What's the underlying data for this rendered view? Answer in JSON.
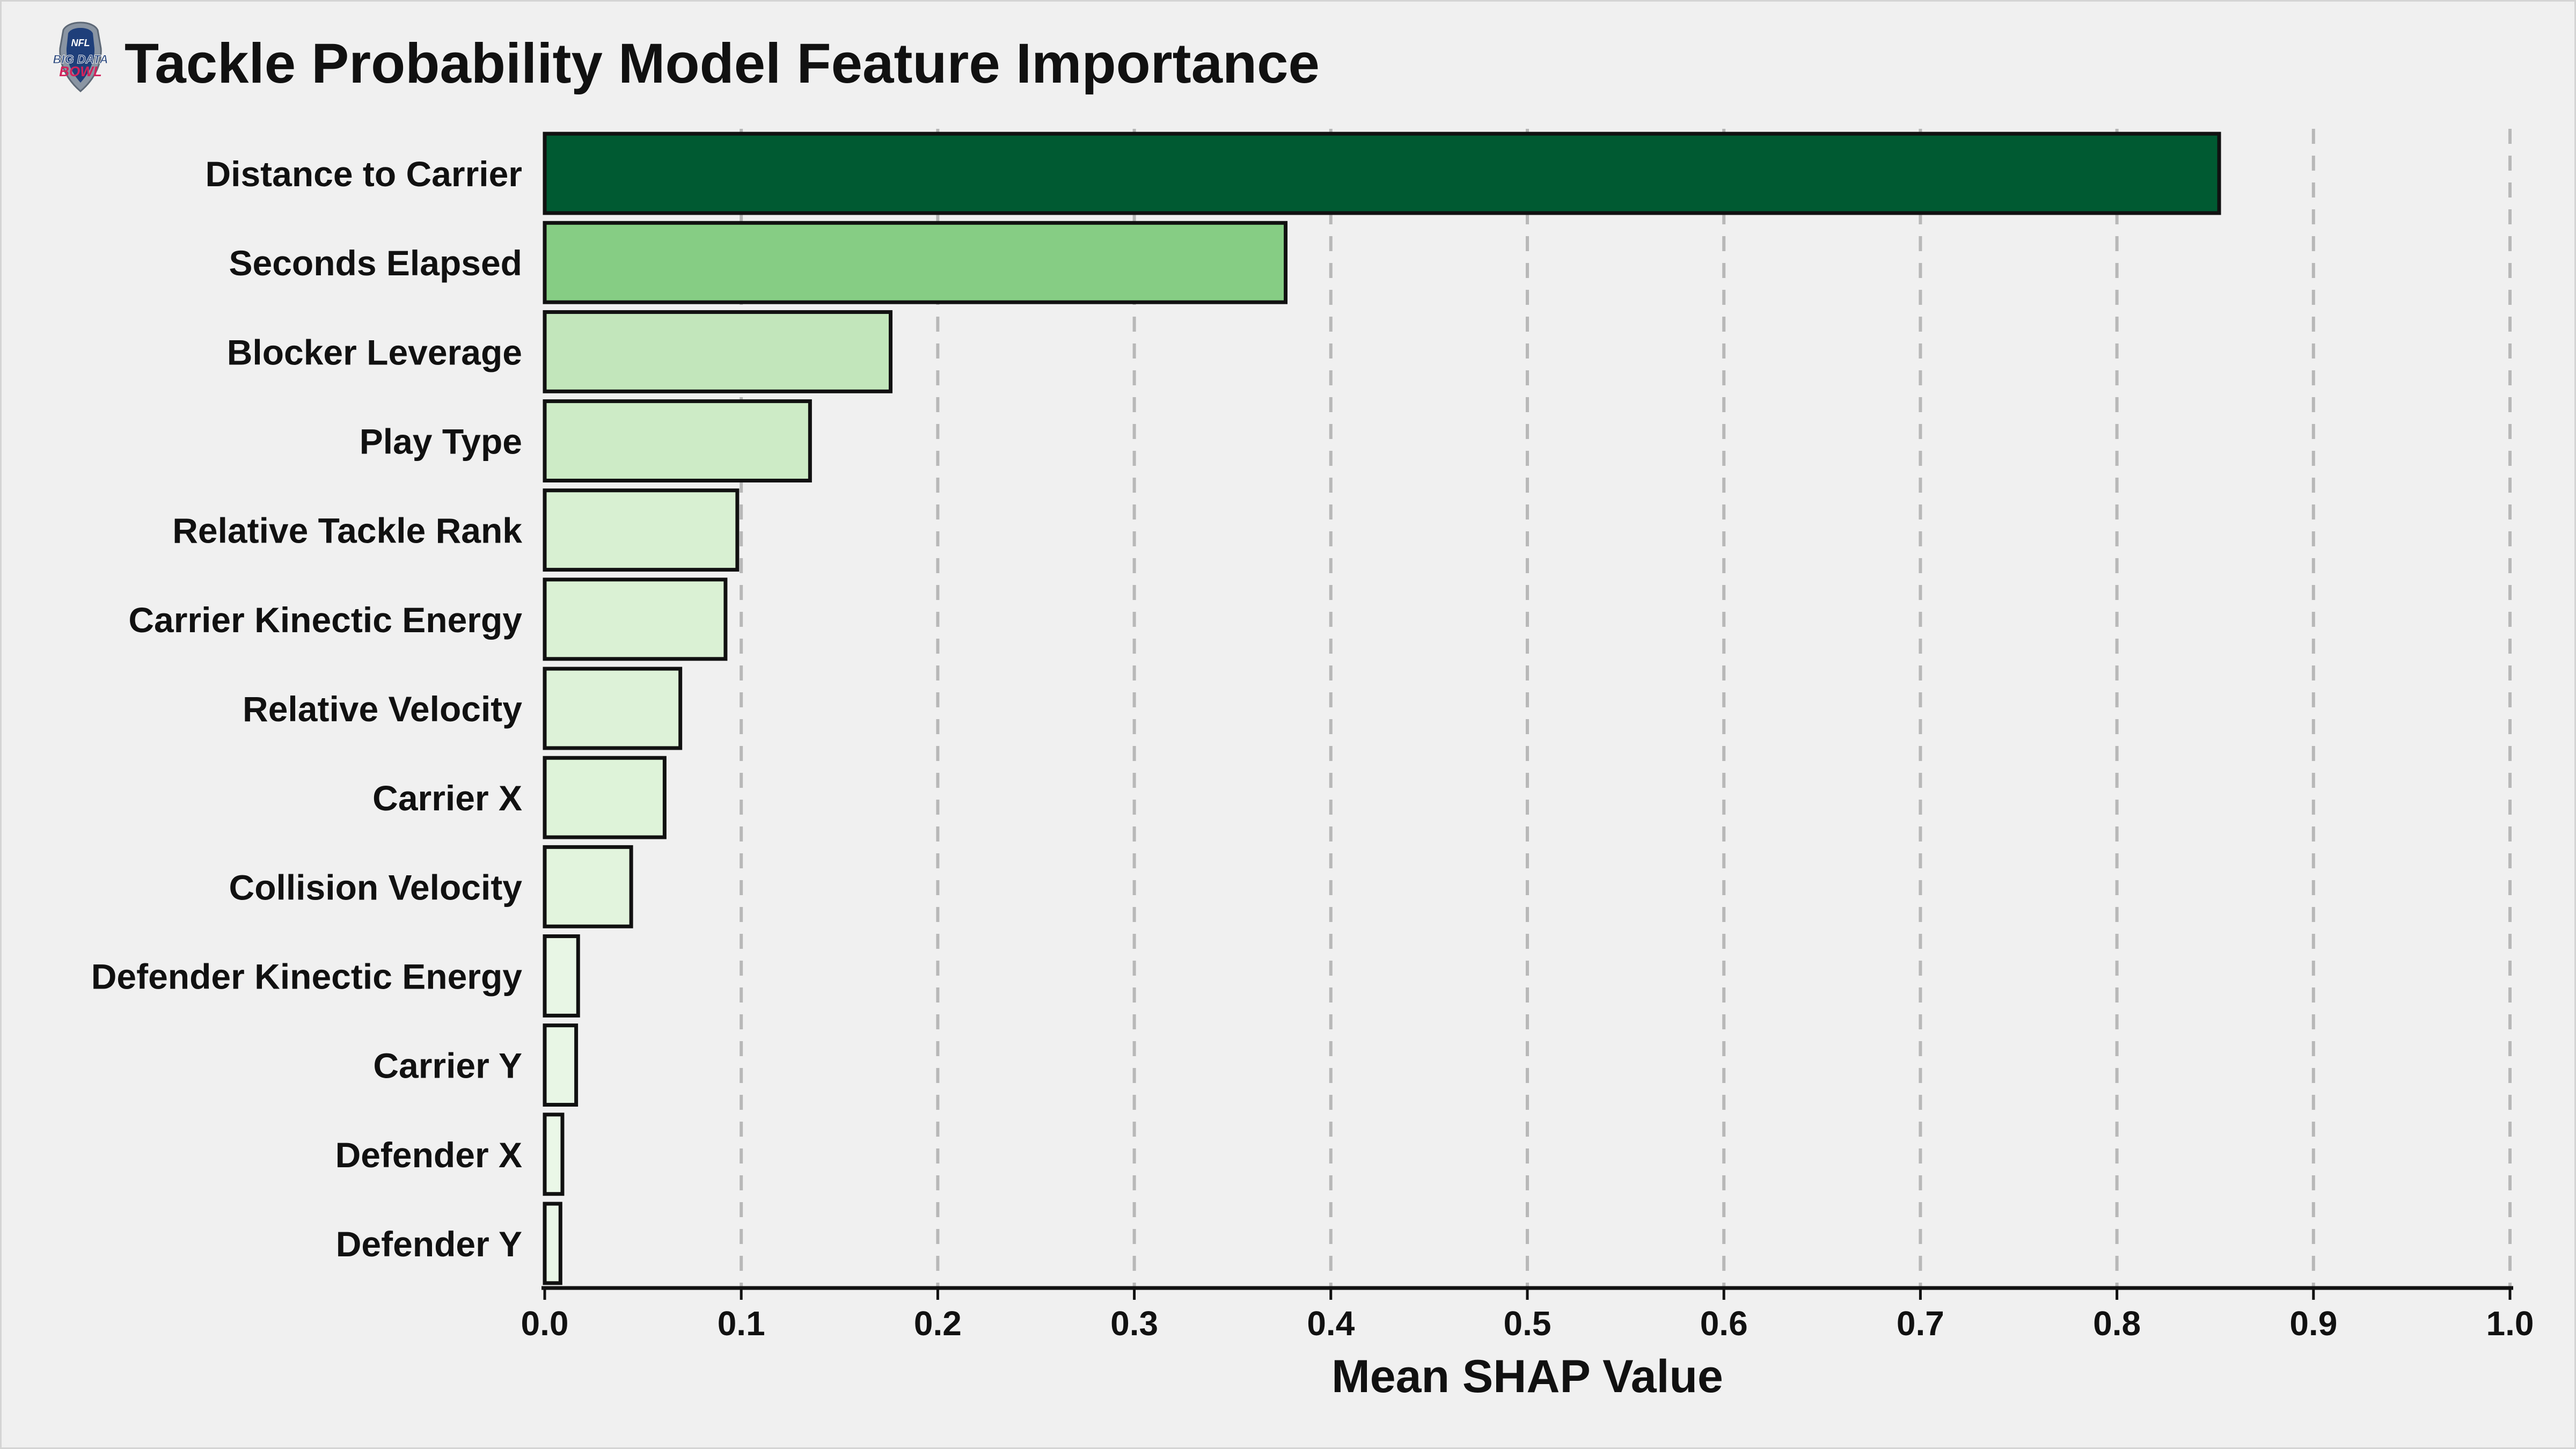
{
  "title": "Tackle Probability Model Feature Importance",
  "logo_text": [
    "BIG DATA",
    "BOWL"
  ],
  "chart_data": {
    "type": "bar",
    "orientation": "horizontal",
    "title": "Tackle Probability Model Feature Importance",
    "xlabel": "Mean SHAP Value",
    "ylabel": "",
    "xlim": [
      0.0,
      1.0
    ],
    "xticks": [
      "0.0",
      "0.1",
      "0.2",
      "0.3",
      "0.4",
      "0.5",
      "0.6",
      "0.7",
      "0.8",
      "0.9",
      "1.0"
    ],
    "grid": "vertical dashed",
    "categories": [
      "Distance to Carrier",
      "Seconds Elapsed",
      "Blocker Leverage",
      "Play Type",
      "Relative Tackle Rank",
      "Carrier Kinectic Energy",
      "Relative Velocity",
      "Carrier X",
      "Collision Velocity",
      "Defender Kinectic Energy",
      "Carrier Y",
      "Defender X",
      "Defender Y"
    ],
    "values": [
      0.852,
      0.377,
      0.176,
      0.135,
      0.098,
      0.092,
      0.069,
      0.061,
      0.044,
      0.017,
      0.016,
      0.009,
      0.008
    ],
    "colors": [
      "#005a32",
      "#86cd84",
      "#c2e6bb",
      "#cdebc6",
      "#d8f0d2",
      "#daf1d4",
      "#ddf2d8",
      "#def3d9",
      "#e2f4dd",
      "#e8f6e5",
      "#e8f6e5",
      "#eaf7e7",
      "#eaf7e7"
    ],
    "bar_edge_color": "#111111",
    "background_color": "#f0f0f0"
  }
}
